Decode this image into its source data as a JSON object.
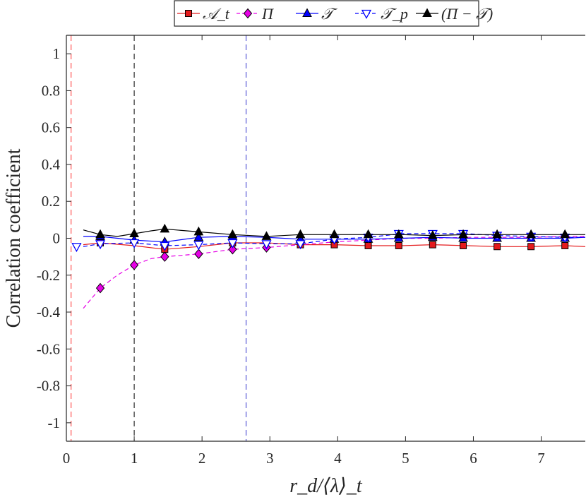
{
  "chart_data": {
    "type": "line",
    "title": "",
    "xlabel": "r_d/⟨λ⟩_t",
    "ylabel": "Correlation coefficient",
    "xlim": [
      0,
      7.65
    ],
    "ylim": [
      -1.1,
      1.1
    ],
    "xticks": [
      0,
      1,
      2,
      3,
      4,
      5,
      6,
      7
    ],
    "yticks": [
      1,
      0.8,
      0.6,
      0.4,
      0.2,
      0,
      -0.2,
      -0.4,
      -0.6,
      -0.8,
      -1
    ],
    "xtick_labels": [
      "0",
      "1",
      "2",
      "3",
      "4",
      "5",
      "6",
      "7"
    ],
    "ytick_labels": [
      "1",
      "0.8",
      "0.6",
      "0.4",
      "0.2",
      "0",
      "-0.2",
      "-0.4",
      "-0.6",
      "-0.8",
      "-1"
    ],
    "grid": false,
    "legend_position": "top",
    "vertical_lines": [
      {
        "x": 0.07,
        "color": "#ff3333"
      },
      {
        "x": 1.0,
        "color": "#000000"
      },
      {
        "x": 2.65,
        "color": "#3333cc"
      }
    ],
    "series": [
      {
        "name": "𝒜_t",
        "color": "#e41a1c",
        "marker": "square",
        "dash": false,
        "x": [
          0.25,
          0.5,
          1.0,
          1.45,
          1.95,
          2.45,
          2.95,
          3.45,
          3.95,
          4.45,
          4.95,
          5.4,
          5.9,
          6.35,
          6.85,
          7.35,
          7.65
        ],
        "y": [
          -0.035,
          -0.025,
          -0.04,
          -0.06,
          -0.045,
          -0.025,
          -0.025,
          -0.035,
          -0.035,
          -0.04,
          -0.04,
          -0.035,
          -0.04,
          -0.045,
          -0.045,
          -0.04,
          -0.045
        ],
        "marker_x": [
          0.5,
          1.45,
          2.45,
          3.45,
          3.95,
          4.45,
          4.9,
          5.4,
          5.85,
          6.35,
          6.85,
          7.35
        ],
        "marker_y": [
          -0.025,
          -0.06,
          -0.025,
          -0.035,
          -0.035,
          -0.04,
          -0.04,
          -0.035,
          -0.04,
          -0.045,
          -0.045,
          -0.04
        ]
      },
      {
        "name": "Π",
        "color": "#e600e6",
        "marker": "diamond",
        "dash": true,
        "x": [
          0.25,
          0.5,
          0.75,
          1.0,
          1.25,
          1.45,
          1.95,
          2.45,
          2.95,
          3.45,
          3.95,
          4.45,
          4.95,
          5.4,
          5.9,
          6.35,
          6.85,
          7.35,
          7.65
        ],
        "y": [
          -0.38,
          -0.27,
          -0.2,
          -0.145,
          -0.11,
          -0.1,
          -0.085,
          -0.06,
          -0.05,
          -0.035,
          -0.02,
          -0.01,
          0.0,
          0.0,
          0.005,
          0.005,
          0.005,
          0.01,
          0.01
        ],
        "marker_x": [
          0.5,
          1.0,
          1.45,
          1.95,
          2.45,
          2.95
        ],
        "marker_y": [
          -0.27,
          -0.145,
          -0.1,
          -0.085,
          -0.06,
          -0.05
        ]
      },
      {
        "name": "𝒯",
        "color": "#0000ff",
        "marker": "triangle-up",
        "dash": false,
        "x": [
          0.25,
          0.5,
          1.0,
          1.45,
          1.95,
          2.45,
          2.95,
          3.45,
          3.95,
          4.45,
          4.95,
          5.4,
          5.9,
          6.35,
          6.85,
          7.35,
          7.65
        ],
        "y": [
          0.01,
          0.01,
          -0.01,
          -0.02,
          0.005,
          0.01,
          0.005,
          -0.005,
          -0.005,
          -0.005,
          0.0,
          0.005,
          0.0,
          0.0,
          0.0,
          0.0,
          0.005
        ],
        "marker_x": [
          0.5,
          1.0,
          1.45,
          1.95,
          2.45,
          3.45,
          3.95,
          4.45,
          4.9,
          5.4,
          5.85,
          6.35,
          6.85,
          7.35
        ],
        "marker_y": [
          0.01,
          -0.01,
          -0.02,
          0.005,
          0.01,
          -0.005,
          -0.005,
          -0.005,
          0.0,
          0.005,
          0.0,
          0.0,
          0.0,
          0.0
        ]
      },
      {
        "name": "𝒯_p",
        "color": "#0000ff",
        "marker": "triangle-down-open",
        "dash": true,
        "x": [
          0.25,
          0.5,
          1.0,
          1.45,
          1.95,
          2.45,
          2.95,
          3.45,
          3.95,
          4.45,
          4.95,
          5.4,
          5.9,
          6.35,
          6.85,
          7.35,
          7.65
        ],
        "y": [
          -0.045,
          -0.03,
          -0.025,
          -0.04,
          -0.035,
          -0.025,
          -0.03,
          -0.03,
          -0.005,
          0.005,
          0.025,
          0.025,
          0.025,
          0.015,
          0.01,
          0.005,
          0.005
        ],
        "marker_x": [
          0.15,
          0.5,
          1.0,
          1.45,
          1.95,
          2.45,
          2.95,
          3.45,
          3.95,
          4.45,
          4.9,
          5.4,
          5.85,
          6.35,
          6.85,
          7.35
        ],
        "marker_y": [
          -0.045,
          -0.03,
          -0.025,
          -0.04,
          -0.035,
          -0.025,
          -0.03,
          -0.03,
          -0.005,
          0.005,
          0.025,
          0.025,
          0.025,
          0.015,
          0.01,
          0.005
        ]
      },
      {
        "name": "(Π − 𝒯)",
        "color": "#000000",
        "marker": "triangle-up",
        "dash": false,
        "x": [
          0.25,
          0.5,
          0.75,
          1.0,
          1.25,
          1.45,
          1.95,
          2.45,
          2.95,
          3.45,
          3.95,
          4.45,
          4.95,
          5.4,
          5.9,
          6.35,
          6.85,
          7.35,
          7.65
        ],
        "y": [
          0.045,
          0.02,
          0.01,
          0.025,
          0.04,
          0.05,
          0.035,
          0.02,
          0.01,
          0.02,
          0.02,
          0.02,
          0.02,
          0.015,
          0.02,
          0.02,
          0.02,
          0.02,
          0.02
        ],
        "marker_x": [
          0.5,
          1.0,
          1.45,
          1.95,
          2.45,
          2.95,
          3.45,
          3.95,
          4.45,
          4.9,
          5.4,
          5.85,
          6.35,
          6.85,
          7.35
        ],
        "marker_y": [
          0.02,
          0.025,
          0.05,
          0.035,
          0.02,
          0.01,
          0.02,
          0.02,
          0.02,
          0.02,
          0.015,
          0.02,
          0.02,
          0.02,
          0.02
        ]
      }
    ]
  }
}
